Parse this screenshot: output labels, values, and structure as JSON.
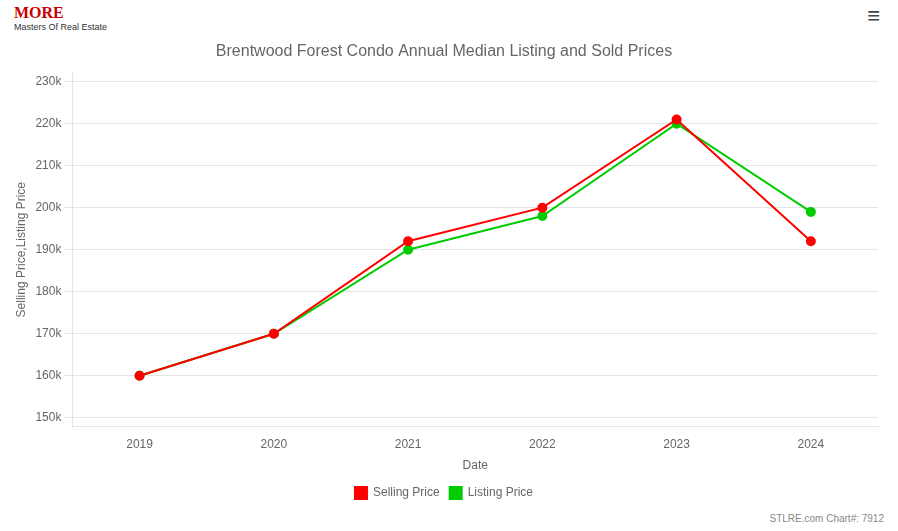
{
  "chart_data": {
    "type": "line",
    "title": "Brentwood Forest Condo Annual Median Listing and Sold Prices",
    "xlabel": "Date",
    "ylabel": "Selling Price,Listing Price",
    "categories": [
      "2019",
      "2020",
      "2021",
      "2022",
      "2023",
      "2024"
    ],
    "series": [
      {
        "name": "Selling Price",
        "color": "#ff0000",
        "marker": "circle",
        "values": [
          160000,
          170000,
          192000,
          200000,
          221000,
          192000
        ]
      },
      {
        "name": "Listing Price",
        "color": "#00cc00",
        "marker": "circle",
        "values": [
          160000,
          170000,
          190000,
          198000,
          220000,
          199000
        ]
      }
    ],
    "ylim": [
      148000,
      232000
    ],
    "yticks": [
      {
        "value": 150000,
        "label": "150k"
      },
      {
        "value": 160000,
        "label": "160k"
      },
      {
        "value": 170000,
        "label": "170k"
      },
      {
        "value": 180000,
        "label": "180k"
      },
      {
        "value": 190000,
        "label": "190k"
      },
      {
        "value": 200000,
        "label": "200k"
      },
      {
        "value": 210000,
        "label": "210k"
      },
      {
        "value": 220000,
        "label": "220k"
      },
      {
        "value": 230000,
        "label": "230k"
      }
    ],
    "grid": "y",
    "legend": "bottom",
    "annotations": [
      "MORE",
      "Masters Of Real Estate",
      "≡",
      "STLRE.com Chart#: 7912"
    ]
  }
}
